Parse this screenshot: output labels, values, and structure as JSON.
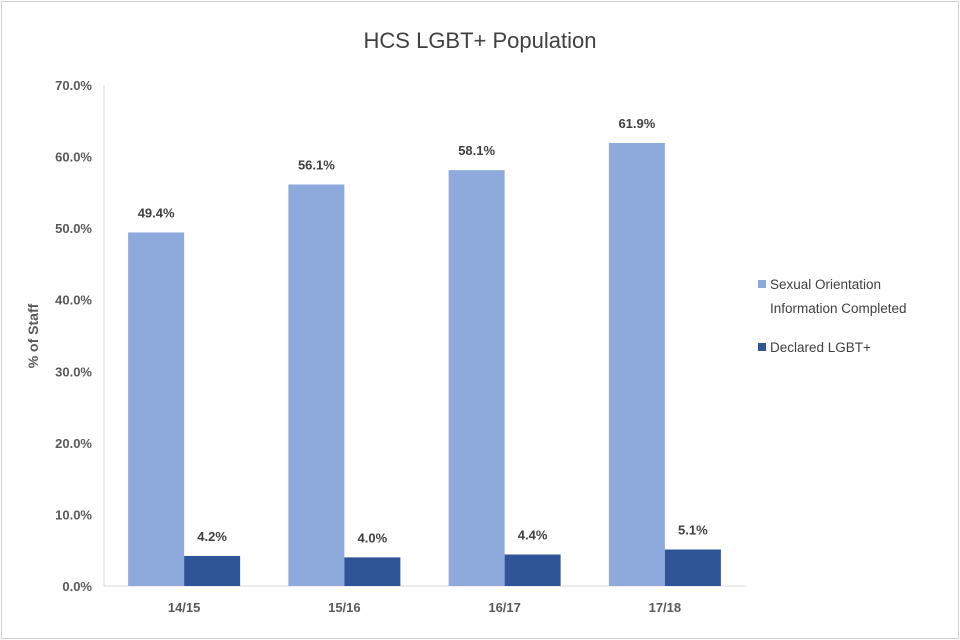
{
  "chart_data": {
    "type": "bar",
    "title": "HCS LGBT+ Population",
    "xlabel": "",
    "ylabel": "% of Staff",
    "ylim": [
      0,
      70
    ],
    "yticks": [
      "0.0%",
      "10.0%",
      "20.0%",
      "30.0%",
      "40.0%",
      "50.0%",
      "60.0%",
      "70.0%"
    ],
    "categories": [
      "14/15",
      "15/16",
      "16/17",
      "17/18"
    ],
    "grid": false,
    "legend_position": "right",
    "series": [
      {
        "name": "Sexual Orientation Information Completed",
        "legend_lines": [
          "Sexual Orientation",
          "Information Completed"
        ],
        "color": "#8EAADC",
        "values": [
          49.4,
          56.1,
          58.1,
          61.9
        ],
        "labels": [
          "49.4%",
          "56.1%",
          "58.1%",
          "61.9%"
        ]
      },
      {
        "name": "Declared LGBT+",
        "legend_lines": [
          "Declared LGBT+"
        ],
        "color": "#2F5597",
        "values": [
          4.2,
          4.0,
          4.4,
          5.1
        ],
        "labels": [
          "4.2%",
          "4.0%",
          "4.4%",
          "5.1%"
        ]
      }
    ]
  }
}
